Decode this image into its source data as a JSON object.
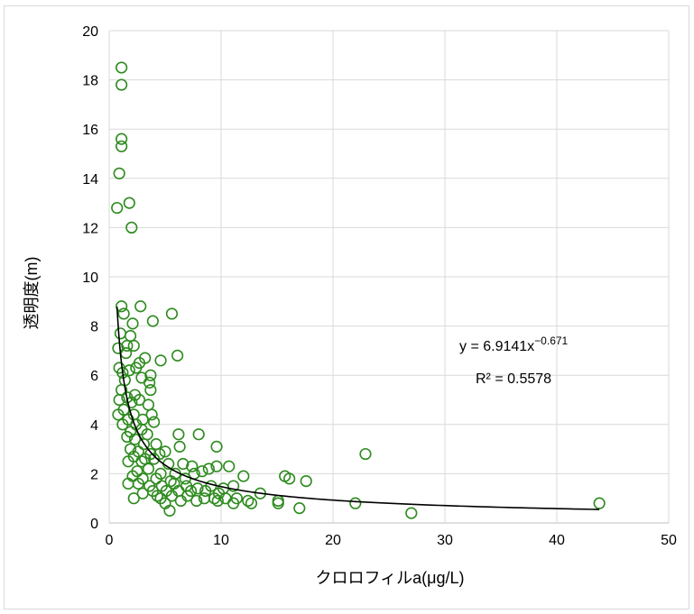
{
  "chart_data": {
    "type": "scatter",
    "xlabel": "クロロフィルa(μg/L)",
    "ylabel": "透明度(m)",
    "xlim": [
      0,
      50
    ],
    "ylim": [
      0,
      20
    ],
    "x_ticks": [
      0,
      10,
      20,
      30,
      40,
      50
    ],
    "y_ticks": [
      0,
      2,
      4,
      6,
      8,
      10,
      12,
      14,
      16,
      18,
      20
    ],
    "grid": true,
    "marker_color": "#2e8b1f",
    "trendline": {
      "type": "power",
      "a": 6.9141,
      "b": -0.671,
      "x_range": [
        0.7,
        43.8
      ],
      "color": "#000000",
      "equation_base": "y = 6.9141x",
      "equation_exp": "−0.671",
      "r2_label": "R² = 0.5578"
    },
    "points": [
      [
        1.1,
        18.5
      ],
      [
        1.1,
        17.8
      ],
      [
        1.1,
        15.6
      ],
      [
        1.1,
        15.3
      ],
      [
        0.9,
        14.2
      ],
      [
        0.7,
        12.8
      ],
      [
        1.8,
        13.0
      ],
      [
        2.0,
        12.0
      ],
      [
        1.1,
        8.8
      ],
      [
        2.8,
        8.8
      ],
      [
        5.6,
        8.5
      ],
      [
        1.3,
        8.5
      ],
      [
        3.9,
        8.2
      ],
      [
        2.1,
        8.1
      ],
      [
        1.0,
        7.7
      ],
      [
        1.9,
        7.6
      ],
      [
        0.8,
        7.1
      ],
      [
        1.6,
        7.2
      ],
      [
        2.2,
        7.2
      ],
      [
        1.5,
        6.9
      ],
      [
        3.2,
        6.7
      ],
      [
        4.6,
        6.6
      ],
      [
        6.1,
        6.8
      ],
      [
        2.7,
        6.5
      ],
      [
        0.9,
        6.3
      ],
      [
        1.2,
        6.1
      ],
      [
        1.8,
        6.2
      ],
      [
        2.4,
        6.3
      ],
      [
        3.7,
        6.0
      ],
      [
        1.4,
        5.8
      ],
      [
        2.9,
        5.9
      ],
      [
        3.6,
        5.7
      ],
      [
        1.1,
        5.4
      ],
      [
        2.3,
        5.2
      ],
      [
        3.7,
        5.4
      ],
      [
        1.6,
        5.1
      ],
      [
        0.9,
        5.0
      ],
      [
        2.0,
        4.9
      ],
      [
        2.7,
        5.0
      ],
      [
        3.5,
        4.8
      ],
      [
        1.3,
        4.6
      ],
      [
        0.8,
        4.4
      ],
      [
        2.2,
        4.4
      ],
      [
        3.8,
        4.4
      ],
      [
        1.7,
        4.2
      ],
      [
        3.0,
        4.2
      ],
      [
        4.0,
        4.1
      ],
      [
        1.2,
        4.0
      ],
      [
        2.4,
        4.0
      ],
      [
        1.9,
        3.7
      ],
      [
        2.9,
        3.8
      ],
      [
        3.4,
        3.6
      ],
      [
        6.2,
        3.6
      ],
      [
        8.0,
        3.6
      ],
      [
        1.6,
        3.5
      ],
      [
        2.3,
        3.4
      ],
      [
        3.1,
        3.2
      ],
      [
        4.2,
        3.2
      ],
      [
        6.3,
        3.1
      ],
      [
        9.6,
        3.1
      ],
      [
        1.9,
        3.0
      ],
      [
        2.6,
        2.9
      ],
      [
        3.7,
        2.8
      ],
      [
        4.5,
        2.8
      ],
      [
        5.0,
        2.9
      ],
      [
        2.2,
        2.7
      ],
      [
        3.2,
        2.6
      ],
      [
        4.0,
        2.6
      ],
      [
        1.7,
        2.5
      ],
      [
        2.9,
        2.5
      ],
      [
        5.3,
        2.4
      ],
      [
        6.6,
        2.4
      ],
      [
        7.4,
        2.3
      ],
      [
        8.9,
        2.2
      ],
      [
        9.6,
        2.3
      ],
      [
        10.7,
        2.3
      ],
      [
        2.5,
        2.1
      ],
      [
        3.5,
        2.2
      ],
      [
        4.6,
        2.0
      ],
      [
        5.9,
        2.0
      ],
      [
        7.6,
        2.0
      ],
      [
        8.3,
        2.1
      ],
      [
        2.1,
        1.9
      ],
      [
        3.0,
        1.8
      ],
      [
        4.2,
        1.8
      ],
      [
        5.5,
        1.7
      ],
      [
        6.8,
        1.8
      ],
      [
        12.0,
        1.9
      ],
      [
        15.7,
        1.9
      ],
      [
        16.1,
        1.8
      ],
      [
        17.6,
        1.7
      ],
      [
        22.9,
        2.8
      ],
      [
        1.7,
        1.6
      ],
      [
        2.6,
        1.6
      ],
      [
        3.6,
        1.5
      ],
      [
        4.7,
        1.5
      ],
      [
        5.8,
        1.6
      ],
      [
        6.9,
        1.5
      ],
      [
        7.9,
        1.4
      ],
      [
        9.1,
        1.5
      ],
      [
        10.2,
        1.4
      ],
      [
        11.1,
        1.5
      ],
      [
        3.9,
        1.3
      ],
      [
        5.1,
        1.3
      ],
      [
        6.2,
        1.3
      ],
      [
        7.3,
        1.3
      ],
      [
        8.6,
        1.3
      ],
      [
        9.8,
        1.2
      ],
      [
        13.5,
        1.2
      ],
      [
        3.0,
        1.2
      ],
      [
        4.3,
        1.1
      ],
      [
        5.6,
        1.1
      ],
      [
        7.0,
        1.1
      ],
      [
        8.5,
        1.0
      ],
      [
        9.4,
        1.0
      ],
      [
        10.4,
        1.0
      ],
      [
        11.4,
        1.0
      ],
      [
        12.4,
        0.9
      ],
      [
        15.1,
        0.9
      ],
      [
        2.2,
        1.0
      ],
      [
        4.6,
        1.0
      ],
      [
        5.0,
        0.8
      ],
      [
        6.4,
        0.9
      ],
      [
        7.8,
        0.9
      ],
      [
        9.7,
        0.9
      ],
      [
        11.1,
        0.8
      ],
      [
        12.7,
        0.8
      ],
      [
        15.1,
        0.8
      ],
      [
        17.0,
        0.6
      ],
      [
        22.0,
        0.8
      ],
      [
        27.0,
        0.4
      ],
      [
        43.8,
        0.8
      ],
      [
        5.4,
        0.5
      ]
    ]
  }
}
